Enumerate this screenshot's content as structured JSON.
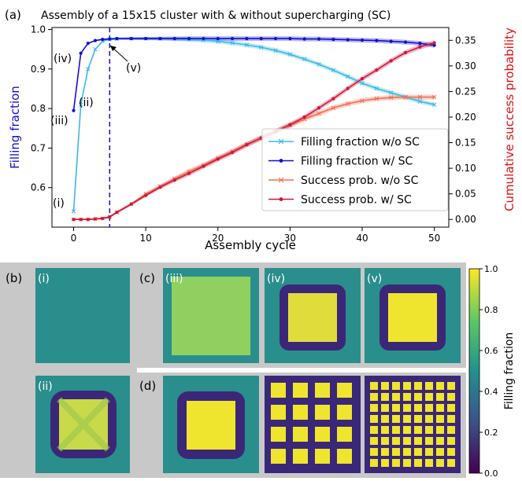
{
  "figure_title": "Assembly of a 15x15 cluster with & without supercharging (SC)",
  "panel_labels": [
    "(a)",
    "(b)",
    "(c)",
    "(d)"
  ],
  "chart_data": {
    "type": "line",
    "title": "Assembly of a 15x15 cluster with & without supercharging (SC)",
    "xlabel": "Assembly cycle",
    "ylabel": "Filling fraction",
    "y2label": "Cumulative success probability",
    "xlim": [
      -3,
      52
    ],
    "ylim": [
      0.5,
      1.005
    ],
    "y2lim": [
      -0.015,
      0.375
    ],
    "xticks": [
      0,
      10,
      20,
      30,
      40,
      50
    ],
    "yticks": [
      0.6,
      0.7,
      0.8,
      0.9,
      1.0
    ],
    "ytick_labels": [
      "0.6",
      "0.7",
      "0.8",
      "0.9",
      "1.0"
    ],
    "y2ticks": [
      0.0,
      0.05,
      0.1,
      0.15,
      0.2,
      0.25,
      0.3,
      0.35
    ],
    "y2tick_labels": [
      "0.00",
      "0.05",
      "0.10",
      "0.15",
      "0.20",
      "0.25",
      "0.30",
      "0.35"
    ],
    "vline_x": 5,
    "legend_position": "lower right",
    "series": [
      {
        "name": "Filling fraction w/o SC",
        "axis": "left",
        "color": "#3cb8e8",
        "marker": "x",
        "x": [
          0,
          1,
          2,
          3,
          4,
          5,
          6,
          8,
          10,
          12,
          14,
          16,
          18,
          20,
          22,
          24,
          26,
          28,
          30,
          32,
          34,
          36,
          38,
          40,
          42,
          44,
          46,
          48,
          50
        ],
        "y": [
          0.54,
          0.81,
          0.9,
          0.95,
          0.97,
          0.975,
          0.976,
          0.977,
          0.977,
          0.977,
          0.976,
          0.975,
          0.973,
          0.97,
          0.966,
          0.961,
          0.955,
          0.947,
          0.937,
          0.925,
          0.912,
          0.897,
          0.881,
          0.864,
          0.851,
          0.84,
          0.829,
          0.818,
          0.81
        ]
      },
      {
        "name": "Filling fraction w/ SC",
        "axis": "left",
        "color": "#1010d0",
        "marker": "o",
        "x": [
          0,
          1,
          2,
          3,
          4,
          5,
          6,
          8,
          10,
          12,
          14,
          16,
          18,
          20,
          22,
          24,
          26,
          28,
          30,
          32,
          34,
          36,
          38,
          40,
          42,
          44,
          46,
          48,
          50
        ],
        "y": [
          0.795,
          0.94,
          0.965,
          0.972,
          0.975,
          0.976,
          0.977,
          0.977,
          0.977,
          0.977,
          0.977,
          0.977,
          0.977,
          0.977,
          0.977,
          0.977,
          0.977,
          0.977,
          0.977,
          0.976,
          0.976,
          0.975,
          0.974,
          0.973,
          0.972,
          0.97,
          0.968,
          0.965,
          0.96
        ]
      },
      {
        "name": "Success prob. w/o SC",
        "axis": "right",
        "color": "#f07050",
        "marker": "x",
        "x": [
          0,
          1,
          2,
          3,
          4,
          5,
          6,
          8,
          10,
          12,
          14,
          16,
          18,
          20,
          22,
          24,
          26,
          28,
          30,
          32,
          34,
          36,
          38,
          40,
          42,
          44,
          46,
          48,
          50
        ],
        "y": [
          0.0,
          0.0,
          0.0,
          0.001,
          0.002,
          0.005,
          0.014,
          0.03,
          0.05,
          0.065,
          0.08,
          0.094,
          0.106,
          0.12,
          0.133,
          0.147,
          0.159,
          0.172,
          0.184,
          0.196,
          0.207,
          0.218,
          0.226,
          0.232,
          0.236,
          0.238,
          0.239,
          0.239,
          0.239
        ]
      },
      {
        "name": "Success prob. w/ SC",
        "axis": "right",
        "color": "#cc1840",
        "marker": "o",
        "x": [
          0,
          1,
          2,
          3,
          4,
          5,
          6,
          8,
          10,
          12,
          14,
          16,
          18,
          20,
          22,
          24,
          26,
          28,
          30,
          32,
          34,
          36,
          38,
          40,
          42,
          44,
          46,
          48,
          50
        ],
        "y": [
          0.0,
          0.0,
          0.0,
          0.001,
          0.002,
          0.005,
          0.014,
          0.03,
          0.047,
          0.063,
          0.077,
          0.09,
          0.104,
          0.118,
          0.131,
          0.146,
          0.159,
          0.172,
          0.185,
          0.2,
          0.218,
          0.236,
          0.256,
          0.275,
          0.292,
          0.31,
          0.326,
          0.337,
          0.345
        ]
      }
    ],
    "annotations": [
      "(i)",
      "(ii)",
      "(iii)",
      "(iv)",
      "(v)"
    ]
  },
  "heatmap_panels": {
    "b_labels": [
      "(i)",
      "(ii)"
    ],
    "c_labels": [
      "(iii)",
      "(iv)",
      "(v)"
    ]
  },
  "colorbar": {
    "label": "Filling fraction",
    "ticks": [
      "0.0",
      "0.2",
      "0.4",
      "0.6",
      "0.8",
      "1.0"
    ],
    "colors": [
      "#440154",
      "#3b528b",
      "#21918c",
      "#5ec962",
      "#fde725"
    ]
  }
}
